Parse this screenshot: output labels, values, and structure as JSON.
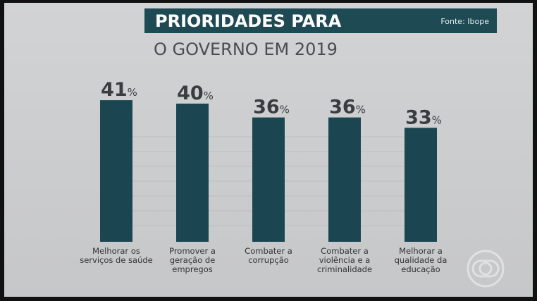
{
  "chart_data": {
    "type": "bar",
    "title": "PRIORIDADES PARA",
    "subtitle": "O GOVERNO EM 2019",
    "source": "Fonte: Ibope",
    "categories": [
      "Melhorar os serviços de saúde",
      "Promover a geração de empregos",
      "Combater a corrupção",
      "Combater a violência e a criminalidade",
      "Melhorar a qualidade da educação"
    ],
    "values": [
      41,
      40,
      36,
      36,
      33
    ],
    "value_labels": [
      "41%",
      "40%",
      "36%",
      "36%",
      "33%"
    ],
    "color": "#1b4651"
  }
}
